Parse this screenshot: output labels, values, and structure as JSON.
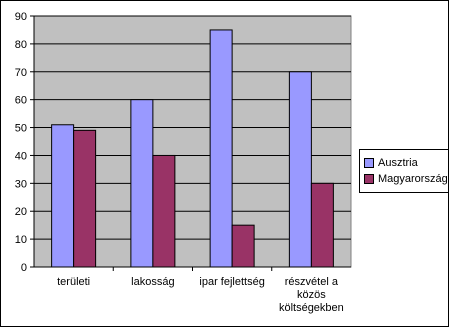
{
  "chart_data": {
    "type": "bar",
    "categories": [
      "területi",
      "lakosság",
      "ipar fejlettség",
      "részvétel a közös költségekben"
    ],
    "category_lines": [
      [
        "területi"
      ],
      [
        "lakosság"
      ],
      [
        "ipar fejlettség"
      ],
      [
        "részvétel a",
        "közös",
        "költségekben"
      ]
    ],
    "series": [
      {
        "name": "Ausztria",
        "values": [
          51,
          60,
          85,
          70
        ],
        "color": "#9999ff"
      },
      {
        "name": "Magyarország",
        "values": [
          49,
          40,
          15,
          30
        ],
        "color": "#993366"
      }
    ],
    "yticks": [
      0,
      10,
      20,
      30,
      40,
      50,
      60,
      70,
      80,
      90
    ],
    "ylim": [
      0,
      90
    ],
    "title": "",
    "xlabel": "",
    "ylabel": "",
    "grid": true,
    "legend_position": "right",
    "plot_background": "#c0c0c0"
  }
}
